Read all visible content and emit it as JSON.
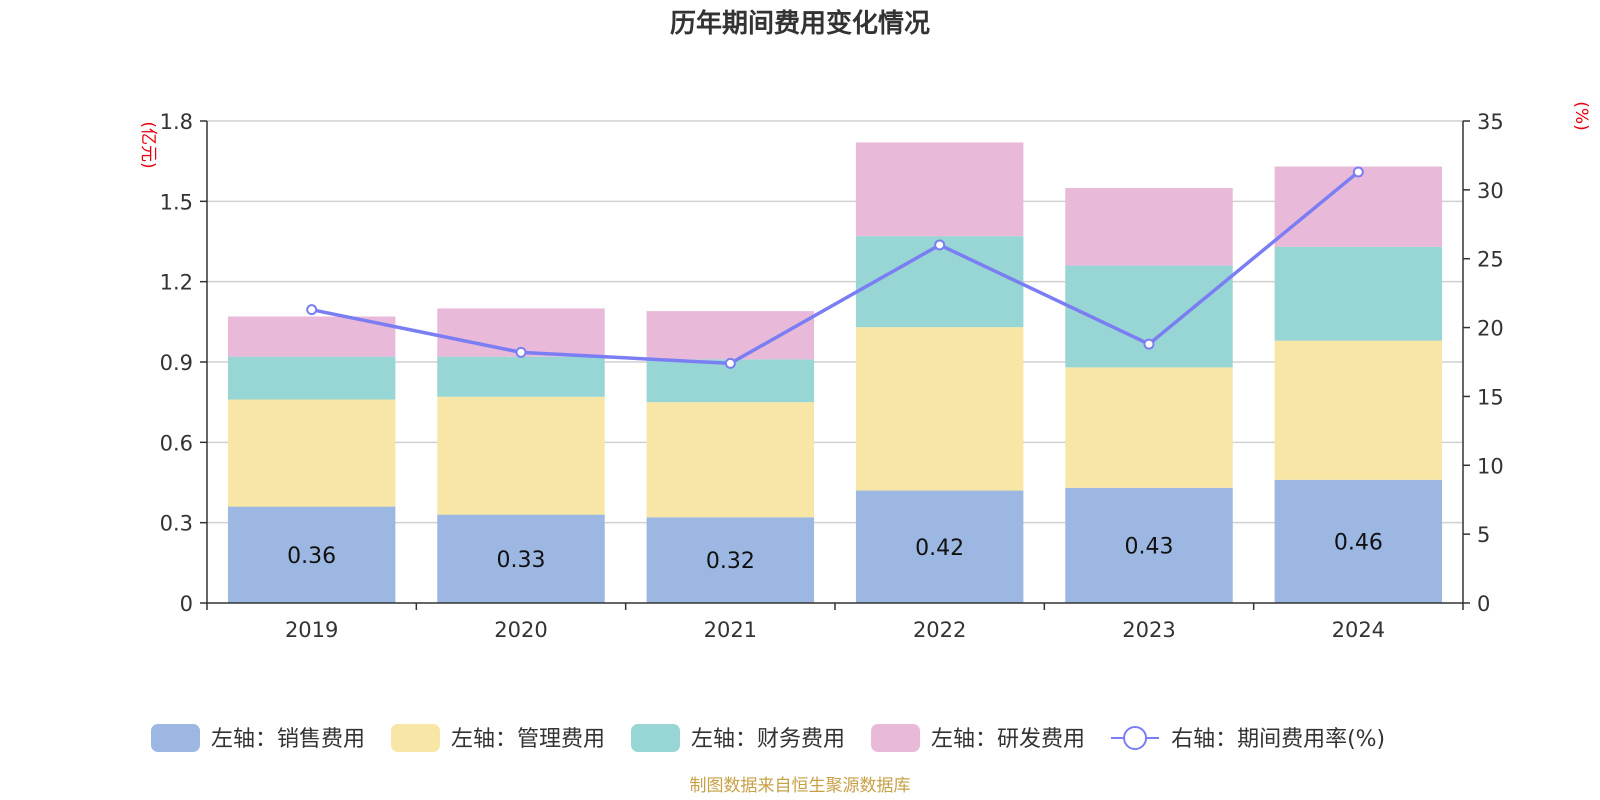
{
  "chart_data": {
    "type": "bar",
    "stacked": true,
    "title": "历年期间费用变化情况",
    "categories": [
      "2019",
      "2020",
      "2021",
      "2022",
      "2023",
      "2024"
    ],
    "left_axis": {
      "unit": "(亿元)",
      "ylim": [
        0,
        1.8
      ],
      "ticks": [
        "0",
        "0.3",
        "0.6",
        "0.9",
        "1.2",
        "1.5",
        "1.8"
      ]
    },
    "right_axis": {
      "unit": "(%)",
      "ylim": [
        0,
        35
      ],
      "ticks": [
        "0",
        "5",
        "10",
        "15",
        "20",
        "25",
        "30",
        "35"
      ]
    },
    "series": [
      {
        "name": "左轴：销售费用",
        "axis": "left",
        "color": "#9cb8e2",
        "values": [
          0.36,
          0.33,
          0.32,
          0.42,
          0.43,
          0.46
        ],
        "labels": [
          "0.36",
          "0.33",
          "0.32",
          "0.42",
          "0.43",
          "0.46"
        ]
      },
      {
        "name": "左轴：管理费用",
        "axis": "left",
        "color": "#f7e6a6",
        "values": [
          0.4,
          0.44,
          0.43,
          0.61,
          0.45,
          0.52
        ]
      },
      {
        "name": "左轴：财务费用",
        "axis": "left",
        "color": "#98d5d5",
        "values": [
          0.16,
          0.15,
          0.16,
          0.34,
          0.38,
          0.35
        ]
      },
      {
        "name": "左轴：研发费用",
        "axis": "left",
        "color": "#e8b9d9",
        "values": [
          0.15,
          0.18,
          0.18,
          0.35,
          0.29,
          0.3
        ]
      },
      {
        "name": "右轴：期间费用率(%)",
        "axis": "right",
        "type": "line",
        "color": "#7b7ef3",
        "values": [
          21.3,
          18.2,
          17.4,
          26.0,
          18.8,
          31.3
        ]
      }
    ]
  },
  "source": "制图数据来自恒生聚源数据库"
}
